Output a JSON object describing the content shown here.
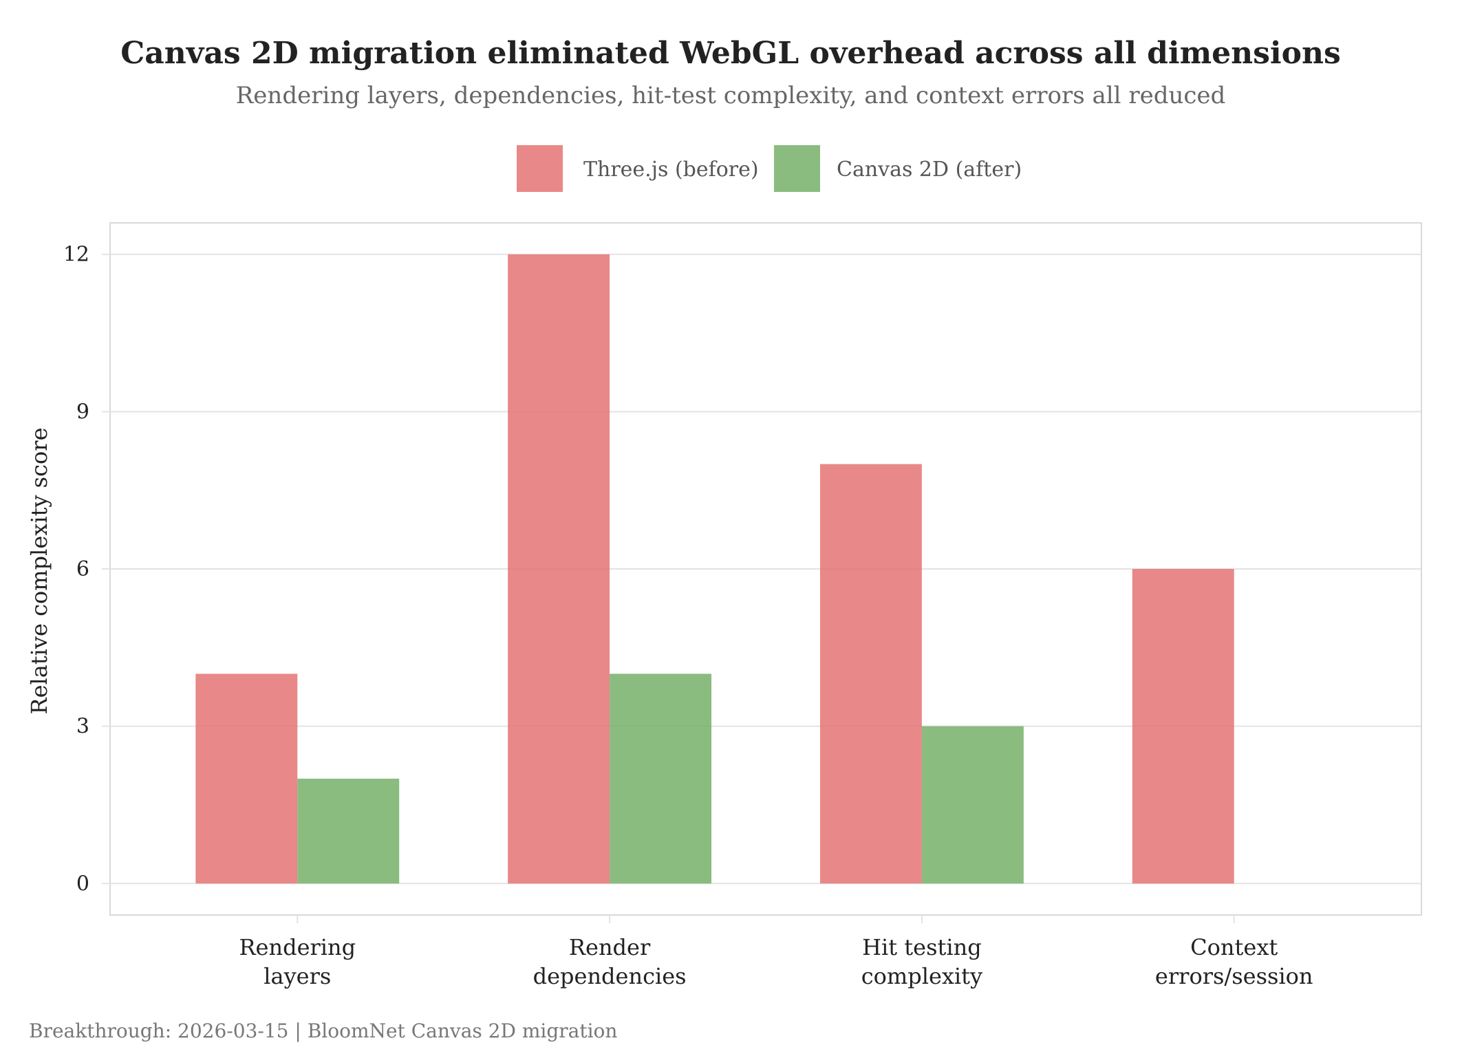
{
  "chart_data": {
    "type": "bar",
    "title": "Canvas 2D migration eliminated WebGL overhead across all dimensions",
    "subtitle": "Rendering layers, dependencies, hit-test complexity, and context errors all reduced",
    "xlabel": "",
    "ylabel": "Relative complexity score",
    "categories": [
      [
        "Rendering",
        "layers"
      ],
      [
        "Render",
        "dependencies"
      ],
      [
        "Hit testing",
        "complexity"
      ],
      [
        "Context",
        "errors/session"
      ]
    ],
    "series": [
      {
        "name": "Three.js (before)",
        "color": "#E57373",
        "values": [
          4,
          12,
          8,
          6
        ]
      },
      {
        "name": "Canvas 2D (after)",
        "color": "#76B06A",
        "values": [
          2,
          4,
          3,
          0
        ]
      }
    ],
    "ylim": [
      -0.6,
      12.6
    ],
    "yticks": [
      0,
      3,
      6,
      9,
      12
    ],
    "grid": true,
    "legend_position": "top-center",
    "bar_opacity": 0.85,
    "caption": "Breakthrough: 2026-03-15 | BloomNet Canvas 2D migration"
  }
}
